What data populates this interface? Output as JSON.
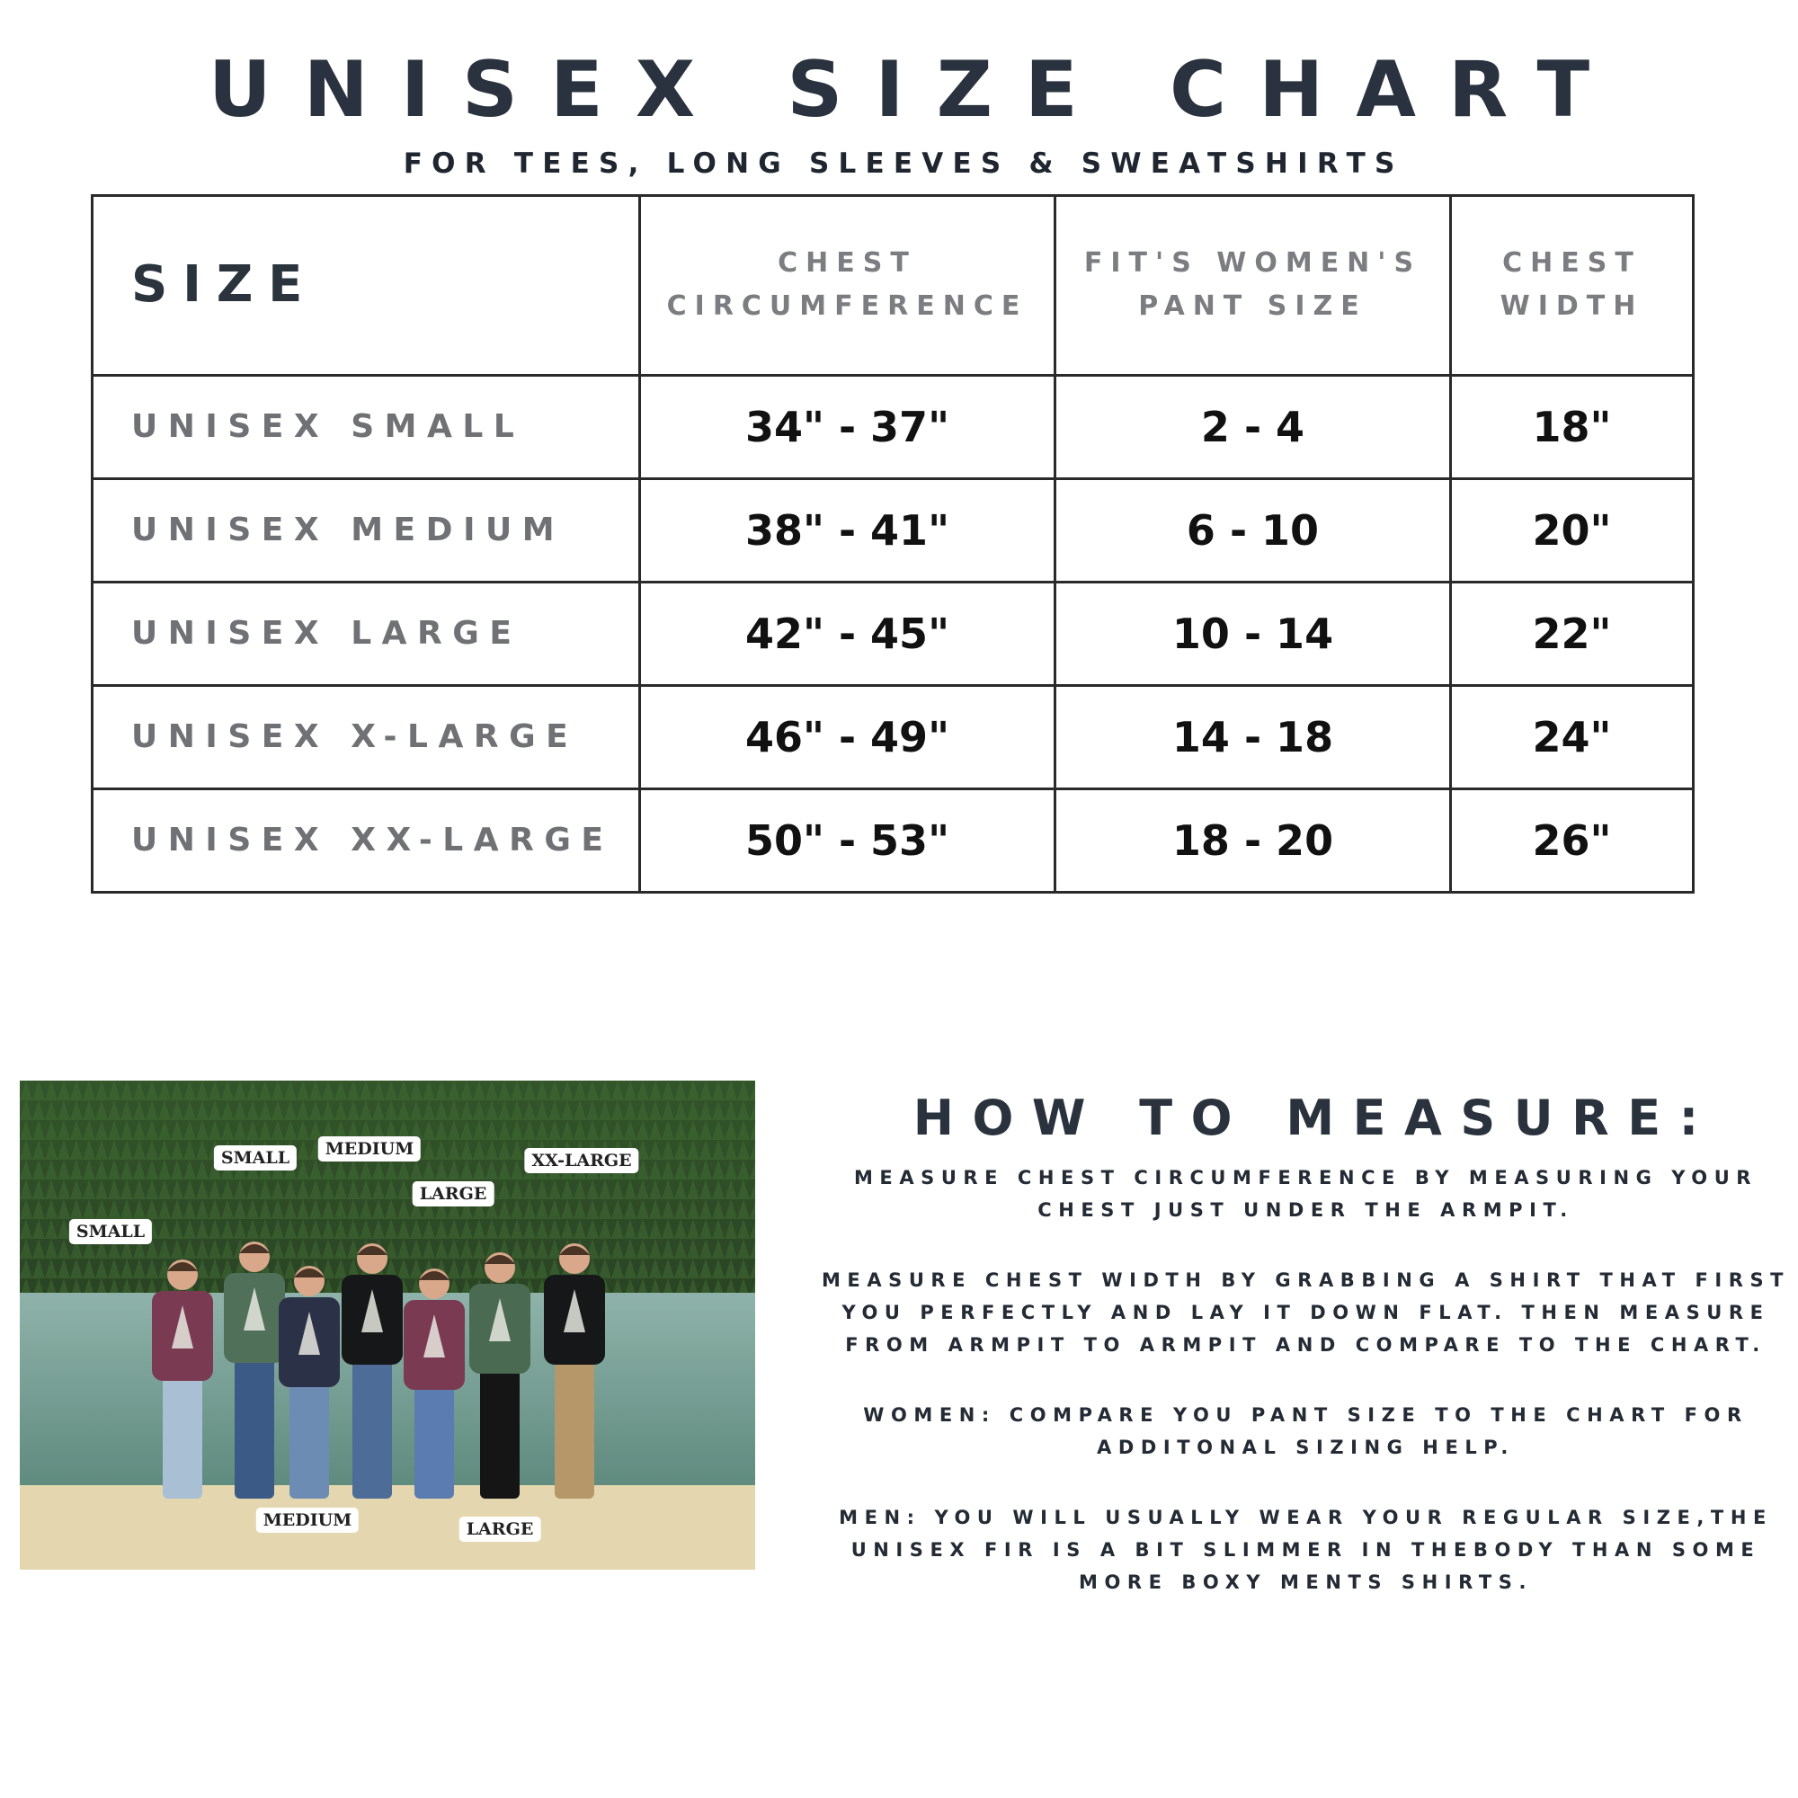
{
  "header": {
    "title": "UNISEX SIZE CHART",
    "subtitle": "FOR TEES, LONG SLEEVES & SWEATSHIRTS"
  },
  "table": {
    "columns": [
      "SIZE",
      "CHEST CIRCUMFERENCE",
      "FIT'S WOMEN'S PANT SIZE",
      "CHEST WIDTH"
    ],
    "rows": [
      {
        "size": "UNISEX SMALL",
        "chest": "34\" - 37\"",
        "pant": "2 - 4",
        "width": "18\""
      },
      {
        "size": "UNISEX MEDIUM",
        "chest": "38\" - 41\"",
        "pant": "6 - 10",
        "width": "20\""
      },
      {
        "size": "UNISEX LARGE",
        "chest": "42\" - 45\"",
        "pant": "10 - 14",
        "width": "22\""
      },
      {
        "size": "UNISEX X-LARGE",
        "chest": "46\" - 49\"",
        "pant": "14 - 18",
        "width": "24\""
      },
      {
        "size": "UNISEX XX-LARGE",
        "chest": "50\" - 53\"",
        "pant": "18 - 20",
        "width": "26\""
      }
    ]
  },
  "photo": {
    "labels": [
      "SMALL",
      "SMALL",
      "MEDIUM",
      "LARGE",
      "XX-LARGE",
      "MEDIUM",
      "LARGE"
    ],
    "shirt_colors": [
      "#7a3b52",
      "#51705a",
      "#2b3147",
      "#161718",
      "#7a3b52",
      "#4a6a52",
      "#161718"
    ]
  },
  "howto": {
    "heading": "HOW TO MEASURE:",
    "paragraphs": [
      [
        "MEASURE CHEST CIRCUMFERENCE BY MEASURING YOUR",
        "CHEST JUST UNDER THE ARMPIT."
      ],
      [
        "MEASURE CHEST WIDTH BY GRABBING A SHIRT THAT FIRST",
        "YOU PERFECTLY AND LAY IT DOWN FLAT. THEN MEASURE",
        "FROM ARMPIT TO ARMPIT AND COMPARE TO THE CHART."
      ],
      [
        "WOMEN: COMPARE YOU PANT SIZE TO THE CHART FOR",
        "ADDITONAL SIZING HELP."
      ],
      [
        "MEN: YOU WILL USUALLY WEAR YOUR REGULAR SIZE,THE",
        "UNISEX FIR IS A BIT SLIMMER IN THEBODY THAN SOME",
        "MORE BOXY MENTS SHIRTS."
      ]
    ]
  }
}
